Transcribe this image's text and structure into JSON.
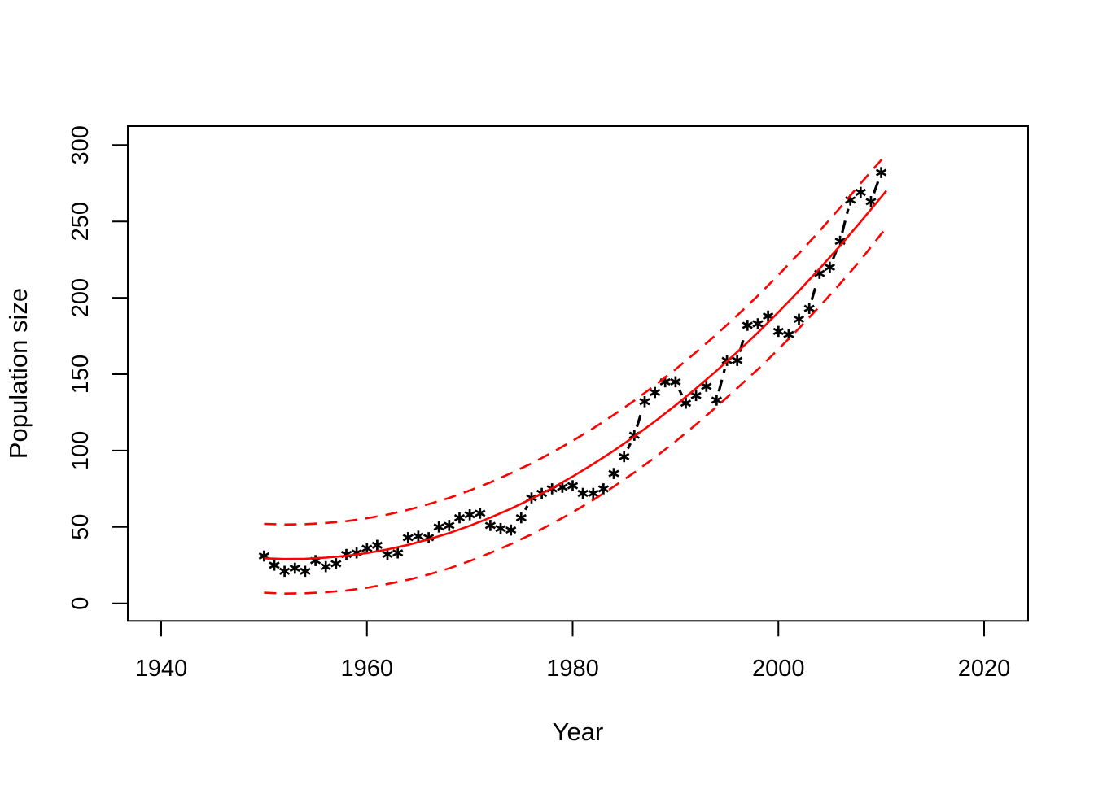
{
  "figure": {
    "xlabel": "Year",
    "ylabel": "Population size"
  },
  "chart_data": {
    "type": "scatter",
    "title": "",
    "xlabel": "Year",
    "ylabel": "Population size",
    "xlim": [
      1937,
      2024
    ],
    "ylim": [
      -12,
      312
    ],
    "x_ticks": [
      1940,
      1960,
      1980,
      2000,
      2020
    ],
    "y_ticks": [
      0,
      50,
      100,
      150,
      200,
      250,
      300
    ],
    "grid": false,
    "legend": null,
    "colors": {
      "points": "#000000",
      "fit": "#ff0000",
      "bands": "#ff0000",
      "axis": "#000000"
    },
    "series": [
      {
        "name": "observed-population",
        "type": "points",
        "marker": "asterisk",
        "color": "#000000",
        "line": "dashed-connector",
        "x": [
          1950,
          1951,
          1952,
          1953,
          1954,
          1955,
          1956,
          1957,
          1958,
          1959,
          1960,
          1961,
          1962,
          1963,
          1964,
          1965,
          1966,
          1967,
          1968,
          1969,
          1970,
          1971,
          1972,
          1973,
          1974,
          1975,
          1976,
          1977,
          1978,
          1979,
          1980,
          1981,
          1982,
          1983,
          1984,
          1985,
          1986,
          1987,
          1988,
          1989,
          1990,
          1991,
          1992,
          1993,
          1994,
          1995,
          1996,
          1997,
          1998,
          1999,
          2000,
          2001,
          2002,
          2003,
          2004,
          2005,
          2006,
          2007,
          2008,
          2009,
          2010
        ],
        "y": [
          31,
          25,
          21,
          23,
          21,
          28,
          24,
          26,
          32,
          33,
          36,
          38,
          32,
          33,
          43,
          44,
          43,
          50,
          51,
          56,
          58,
          59,
          51,
          49,
          48,
          56,
          69,
          72,
          75,
          76,
          77,
          72,
          72,
          75,
          85,
          96,
          110,
          132,
          138,
          145,
          145,
          131,
          136,
          142,
          133,
          159,
          159,
          182,
          183,
          188,
          178,
          176,
          186,
          193,
          216,
          220,
          237,
          264,
          269,
          263,
          282
        ]
      },
      {
        "name": "fitted-curve",
        "type": "line",
        "color": "#ff0000",
        "line": "solid",
        "x": [
          1950,
          1952,
          1954,
          1956,
          1958,
          1960,
          1962,
          1964,
          1966,
          1968,
          1970,
          1972,
          1974,
          1976,
          1978,
          1980,
          1982,
          1984,
          1986,
          1988,
          1990,
          1992,
          1994,
          1996,
          1998,
          2000,
          2002,
          2004,
          2006,
          2008,
          2010,
          2010.5
        ],
        "y": [
          29.5,
          29.0,
          29.2,
          29.9,
          31.1,
          32.9,
          35.3,
          38.3,
          41.9,
          46.0,
          50.8,
          56.1,
          62.0,
          68.4,
          75.4,
          83.0,
          91.2,
          99.9,
          109.2,
          119.1,
          129.6,
          140.7,
          152.3,
          164.5,
          177.2,
          190.6,
          204.5,
          219.0,
          234.1,
          249.8,
          266.0,
          270.1
        ]
      },
      {
        "name": "upper-prediction-band",
        "type": "line",
        "color": "#ff0000",
        "line": "dashed",
        "x": [
          1950,
          1952,
          1954,
          1956,
          1958,
          1960,
          1962,
          1964,
          1966,
          1968,
          1970,
          1972,
          1974,
          1976,
          1978,
          1980,
          1982,
          1984,
          1986,
          1988,
          1990,
          1992,
          1994,
          1996,
          1998,
          2000,
          2002,
          2004,
          2006,
          2008,
          2010,
          2010.5
        ],
        "y": [
          52.0,
          51.6,
          51.8,
          52.6,
          53.8,
          55.7,
          58.1,
          61.2,
          64.9,
          69.0,
          73.9,
          79.2,
          85.2,
          91.6,
          98.7,
          106.4,
          114.6,
          123.4,
          132.7,
          142.7,
          153.2,
          164.4,
          176.1,
          188.5,
          201.3,
          214.9,
          229.0,
          243.7,
          259.0,
          274.9,
          290.2,
          294.3
        ]
      },
      {
        "name": "lower-prediction-band",
        "type": "line",
        "color": "#ff0000",
        "line": "dashed",
        "x": [
          1950,
          1952,
          1954,
          1956,
          1958,
          1960,
          1962,
          1964,
          1966,
          1968,
          1970,
          1972,
          1974,
          1976,
          1978,
          1980,
          1982,
          1984,
          1986,
          1988,
          1990,
          1992,
          1994,
          1996,
          1998,
          2000,
          2002,
          2004,
          2006,
          2008,
          2010,
          2010.5
        ],
        "y": [
          7.0,
          6.4,
          6.6,
          7.3,
          8.4,
          10.2,
          12.6,
          15.4,
          18.9,
          22.9,
          27.7,
          33.0,
          38.8,
          45.2,
          52.2,
          59.6,
          67.7,
          76.4,
          85.7,
          95.5,
          106.0,
          117.1,
          128.7,
          140.9,
          153.2,
          166.3,
          180.0,
          194.3,
          209.2,
          224.7,
          241.8,
          245.9
        ]
      }
    ]
  }
}
